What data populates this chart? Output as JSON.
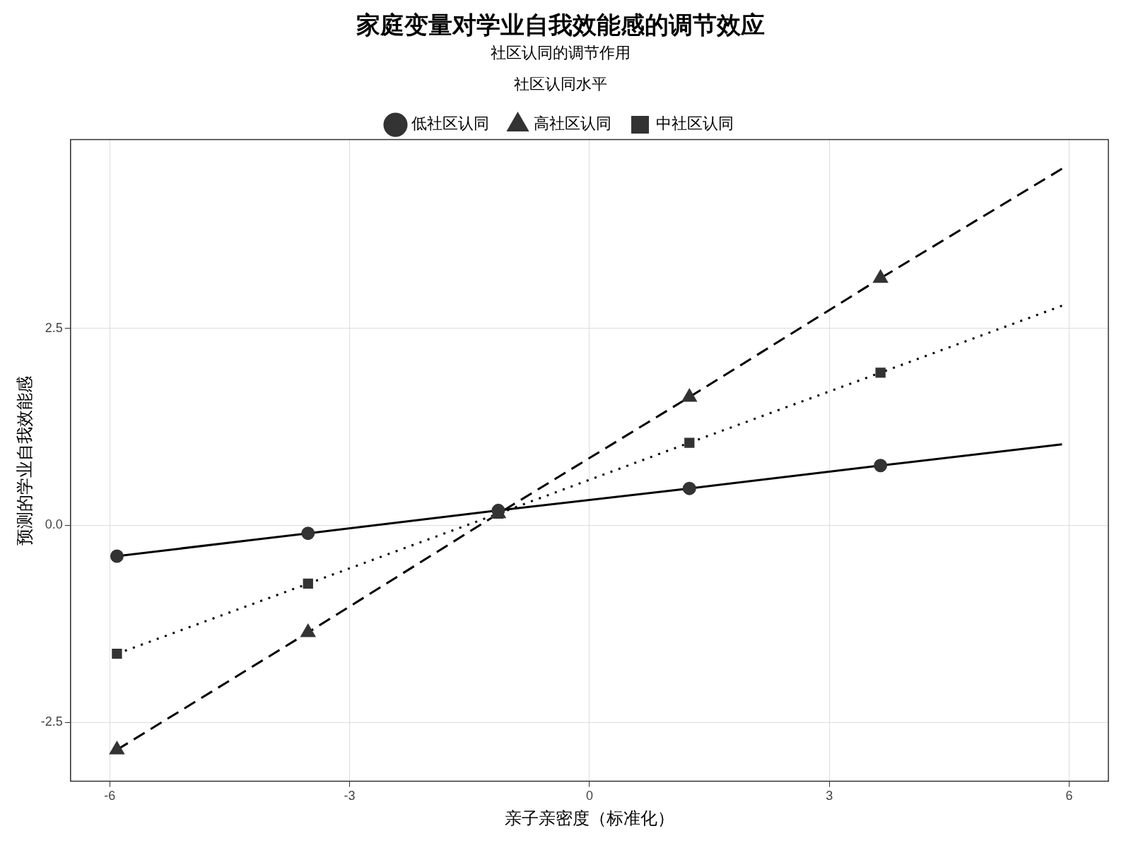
{
  "chart_data": {
    "type": "line",
    "title": "家庭变量对学业自我效能感的调节效应",
    "subtitle": "社区认同的调节作用",
    "xlabel": "亲子亲密度（标准化）",
    "ylabel": "预测的学业自我效能感",
    "legend_title": "社区认同水平",
    "legend": "top",
    "grid": true,
    "xlim": [
      -6.49,
      6.49
    ],
    "xticks": [
      -6,
      -3,
      0,
      3,
      6
    ],
    "ylim": [
      -3.25,
      4.9
    ],
    "yticks": [
      {
        "value": -2.5,
        "label": "-2.5"
      },
      {
        "value": 0,
        "label": "0.0"
      },
      {
        "value": 2.5,
        "label": "2.5"
      }
    ],
    "series": [
      {
        "name": "低社区认同",
        "color": "#000000",
        "marker": "circle",
        "line_style": "solid",
        "x": [
          -5.91,
          -3.52,
          -1.14,
          1.25,
          3.64
        ],
        "values": [
          -0.39,
          -0.1,
          0.19,
          0.47,
          0.76
        ]
      },
      {
        "name": "高社区认同",
        "color": "#000000",
        "marker": "triangle",
        "line_style": "dashed",
        "x": [
          -5.91,
          -3.52,
          -1.14,
          1.25,
          3.64
        ],
        "values": [
          -2.85,
          -1.36,
          0.15,
          1.63,
          3.14
        ]
      },
      {
        "name": "中社区认同",
        "color": "#000000",
        "marker": "square",
        "line_style": "dotted",
        "x": [
          -5.91,
          -3.52,
          -1.14,
          1.25,
          3.64
        ],
        "values": [
          -1.63,
          -0.74,
          0.15,
          1.05,
          1.94
        ]
      },
      {
        "color": "#000000",
        "marker": "none",
        "line_style": "solid",
        "x": [
          5.91,
          3.64
        ],
        "values": [
          1.03,
          0.76
        ]
      },
      {
        "color": "#000000",
        "marker": "none",
        "line_style": "dashed",
        "x": [
          5.91,
          3.64
        ],
        "values": [
          4.53,
          3.14
        ]
      },
      {
        "color": "#000000",
        "marker": "none",
        "line_style": "dotted",
        "x": [
          5.91,
          3.64
        ],
        "values": [
          2.79,
          1.94
        ]
      }
    ]
  }
}
